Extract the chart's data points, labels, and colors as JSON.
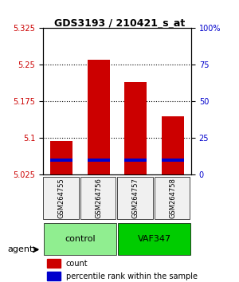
{
  "title": "GDS3193 / 210421_s_at",
  "samples": [
    "GSM264755",
    "GSM264756",
    "GSM264757",
    "GSM264758"
  ],
  "groups": [
    "control",
    "control",
    "VAF347",
    "VAF347"
  ],
  "group_labels": [
    "control",
    "VAF347"
  ],
  "group_colors": [
    "#90EE90",
    "#00CC00"
  ],
  "bar_base": 5.025,
  "count_values": [
    5.095,
    5.26,
    5.215,
    5.145
  ],
  "percentile_values": [
    5.055,
    5.055,
    5.055,
    5.055
  ],
  "bar_width": 0.6,
  "ylim_left": [
    5.025,
    5.325
  ],
  "ylim_right": [
    0,
    100
  ],
  "yticks_left": [
    5.025,
    5.1,
    5.175,
    5.25,
    5.325
  ],
  "ytick_labels_left": [
    "5.025",
    "5.1",
    "5.175",
    "5.25",
    "5.325"
  ],
  "yticks_right": [
    0,
    25,
    50,
    75,
    100
  ],
  "ytick_labels_right": [
    "0",
    "25",
    "50",
    "75",
    "100%"
  ],
  "hlines": [
    5.1,
    5.175,
    5.25
  ],
  "count_color": "#CC0000",
  "percentile_color": "#0000CC",
  "bg_color": "#F0F0F0",
  "plot_bg": "#FFFFFF"
}
